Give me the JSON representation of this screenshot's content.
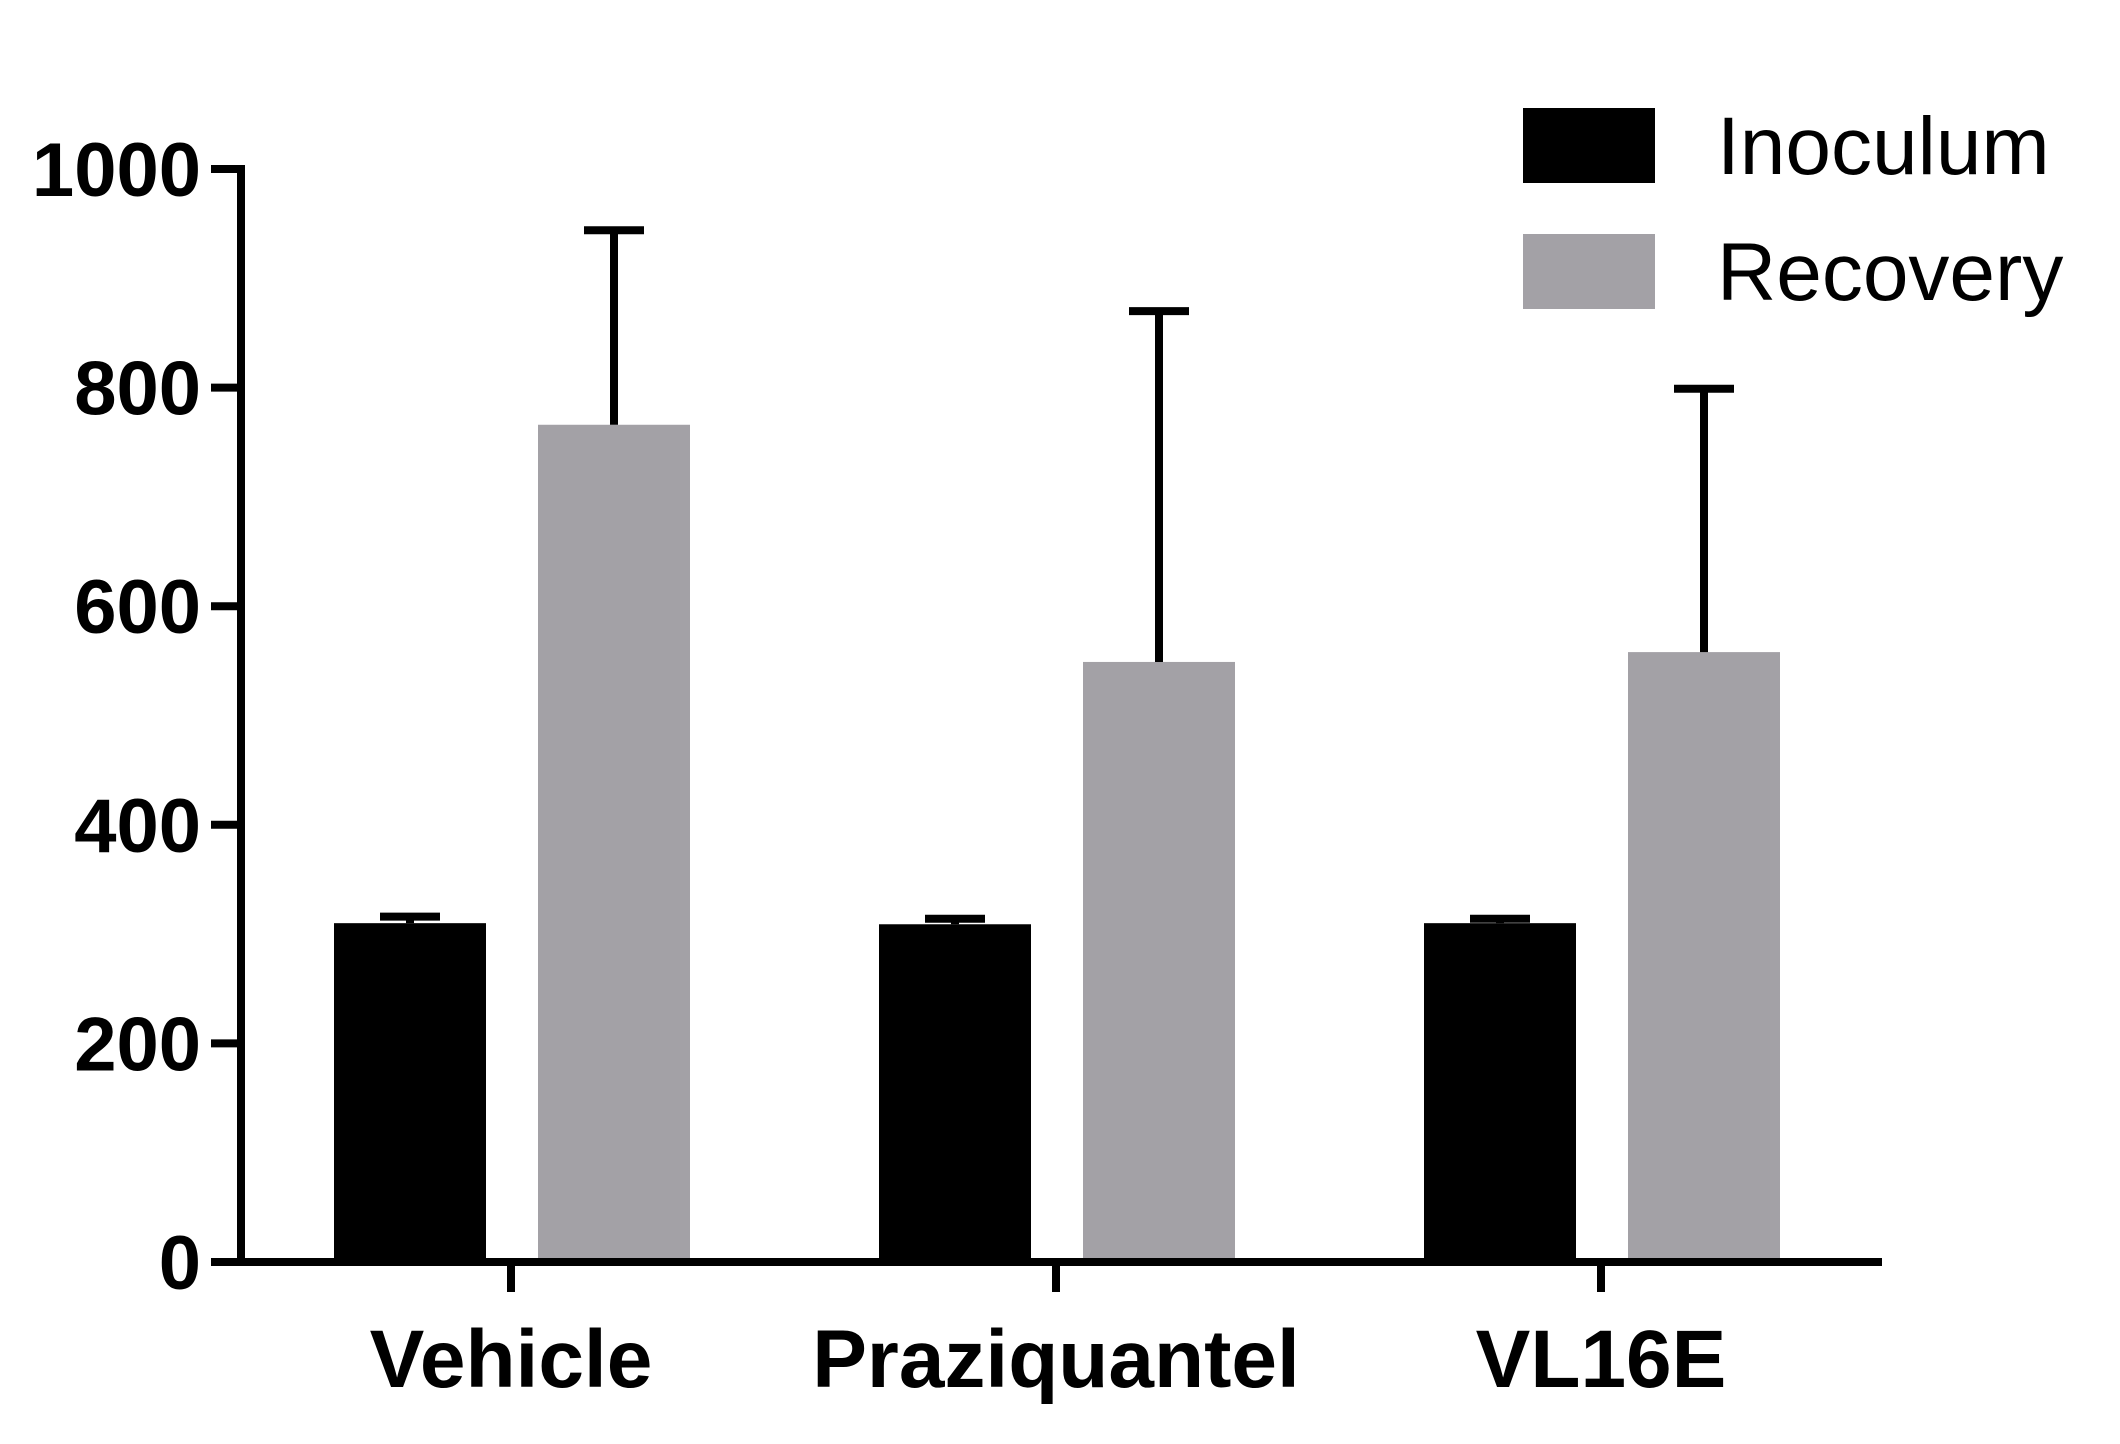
{
  "chart_data": {
    "type": "bar",
    "title": "",
    "xlabel": "",
    "ylabel": "",
    "ylim": [
      0,
      1000
    ],
    "yticks": [
      "0",
      "200",
      "400",
      "600",
      "800",
      "1000"
    ],
    "categories": [
      "Vehicle",
      "Praziquantel",
      "VL16E"
    ],
    "series": [
      {
        "name": "Inoculum",
        "color": "#000000",
        "values": [
          310,
          309,
          310
        ],
        "error_upper": [
          316,
          314,
          314
        ]
      },
      {
        "name": "Recovery",
        "color": "#a3a1a6",
        "values": [
          766,
          549,
          558
        ],
        "error_upper": [
          944,
          870,
          799
        ]
      }
    ],
    "legend_position": "top-right",
    "grid": false
  }
}
